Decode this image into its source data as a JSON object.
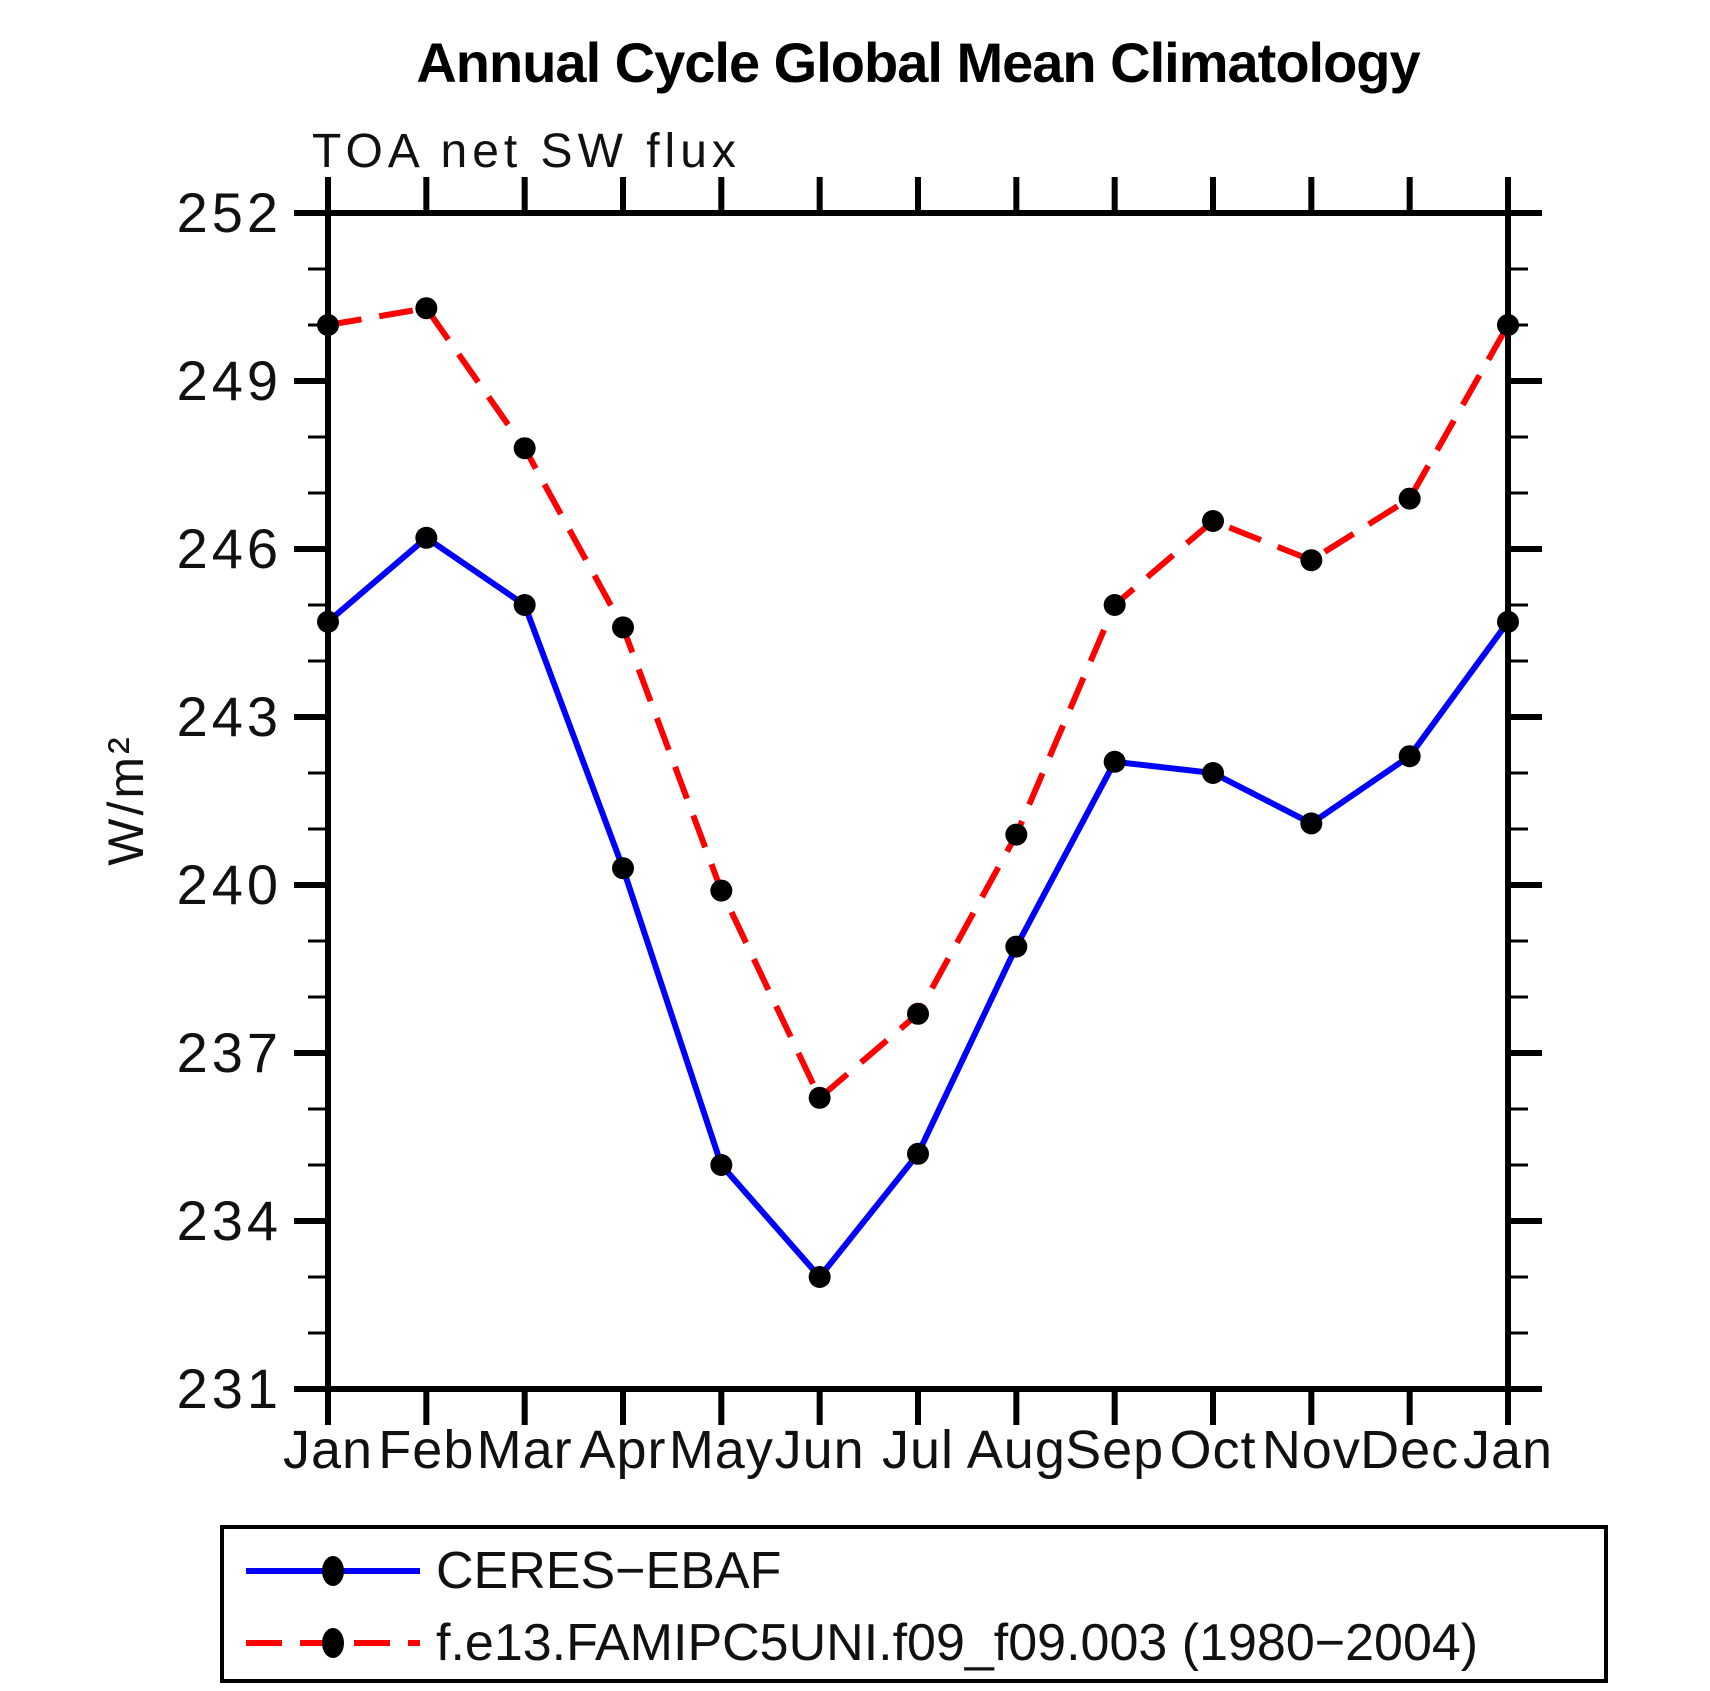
{
  "header": {
    "title": "Annual Cycle Global Mean Climatology",
    "subtitle": "TOA net SW flux"
  },
  "y_axis": {
    "label": "W/m²",
    "tick_labels": [
      "231",
      "234",
      "237",
      "240",
      "243",
      "246",
      "249",
      "252"
    ]
  },
  "x_axis": {
    "tick_labels": [
      "Jan",
      "Feb",
      "Mar",
      "Apr",
      "May",
      "Jun",
      "Jul",
      "Aug",
      "Sep",
      "Oct",
      "Nov",
      "Dec",
      "Jan"
    ]
  },
  "legend": {
    "entries": [
      {
        "label": "CERES−EBAF",
        "color": "#0000ff",
        "line_style": "solid",
        "marker_color": "#000000"
      },
      {
        "label": "f.e13.FAMIPC5UNI.f09_f09.003 (1980−2004)",
        "color": "#ff0000",
        "line_style": "dashed",
        "marker_color": "#000000"
      }
    ]
  },
  "colors": {
    "axis": "#000000",
    "text": "#111111",
    "ceres": "#0000ff",
    "model": "#ff0000",
    "marker": "#000000"
  },
  "chart_data": {
    "type": "line",
    "title": "Annual Cycle Global Mean Climatology",
    "subtitle": "TOA net SW flux",
    "ylabel": "W/m²",
    "x": [
      "Jan",
      "Feb",
      "Mar",
      "Apr",
      "May",
      "Jun",
      "Jul",
      "Aug",
      "Sep",
      "Oct",
      "Nov",
      "Dec",
      "Jan"
    ],
    "ylim": [
      231,
      252
    ],
    "ytick_step": 3,
    "yminor_step": 1,
    "grid": false,
    "legend_position": "bottom",
    "series": [
      {
        "name": "CERES−EBAF",
        "color": "#0000ff",
        "style": "solid",
        "marker": "circle",
        "marker_color": "#000000",
        "values": [
          244.7,
          246.2,
          245.0,
          240.3,
          235.0,
          233.0,
          235.2,
          238.9,
          242.2,
          242.0,
          241.1,
          242.3,
          244.7
        ]
      },
      {
        "name": "f.e13.FAMIPC5UNI.f09_f09.003 (1980−2004)",
        "color": "#ff0000",
        "style": "dashed",
        "marker": "circle",
        "marker_color": "#000000",
        "values": [
          250.0,
          250.3,
          247.8,
          244.6,
          239.9,
          236.2,
          237.7,
          240.9,
          245.0,
          246.5,
          245.8,
          246.9,
          250.0
        ]
      }
    ]
  }
}
